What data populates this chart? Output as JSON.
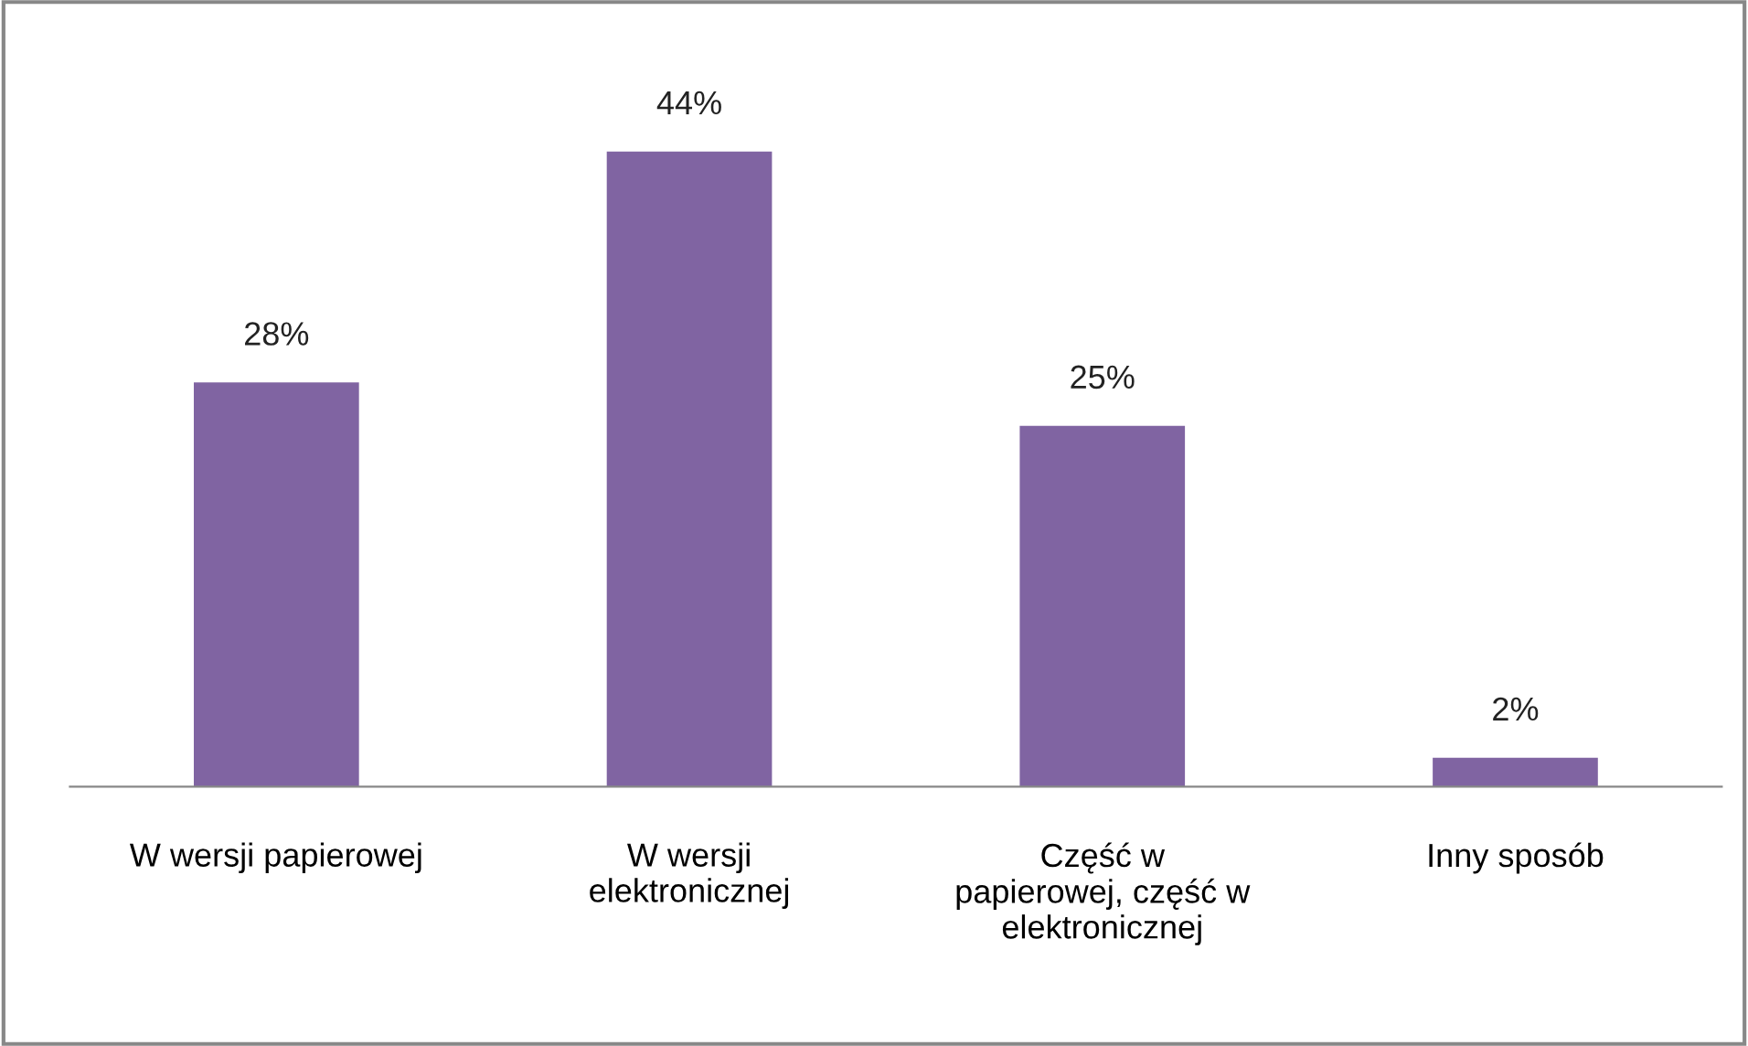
{
  "chart_data": {
    "type": "bar",
    "categories": [
      "W wersji papierowej",
      "W wersji\nelektronicznej",
      "Część w\npapierowej, część w\nelektronicznej",
      "Inny sposób"
    ],
    "values": [
      28,
      44,
      25,
      2
    ],
    "value_labels": [
      "28%",
      "44%",
      "25%",
      "2%"
    ],
    "color": "#8064a2",
    "grid": false,
    "legend": false
  }
}
